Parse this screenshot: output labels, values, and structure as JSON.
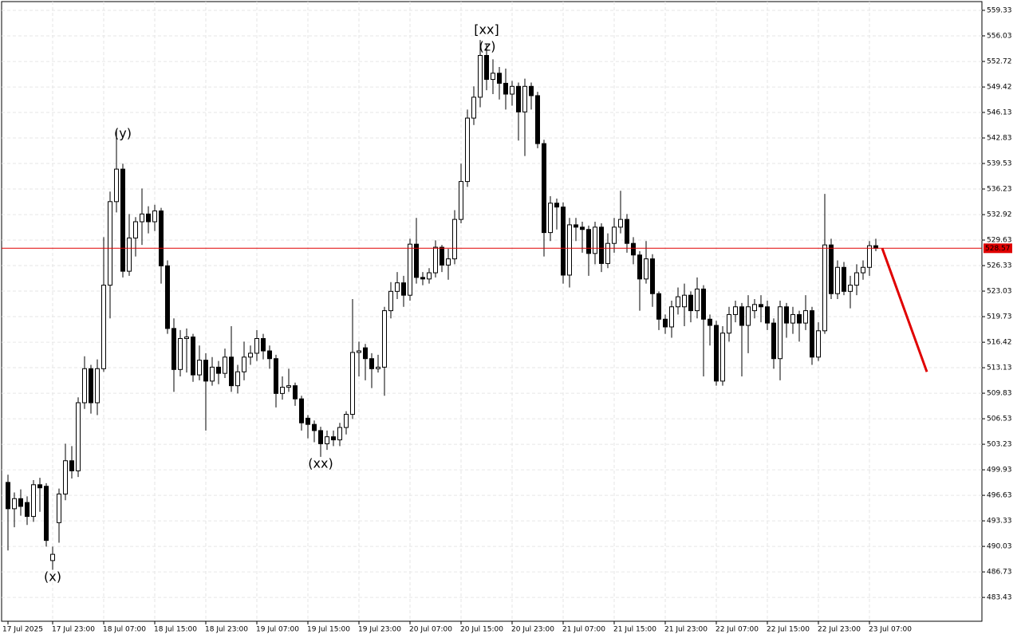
{
  "chart_data": {
    "type": "candlestick",
    "categories": [
      "17 Jul 2025",
      null,
      null,
      null,
      null,
      null,
      null,
      "17 Jul 23:00",
      null,
      null,
      null,
      null,
      null,
      null,
      null,
      "18 Jul 07:00",
      null,
      null,
      null,
      null,
      null,
      null,
      null,
      "18 Jul 15:00",
      null,
      null,
      null,
      null,
      null,
      null,
      null,
      "18 Jul 23:00",
      null,
      null,
      null,
      null,
      null,
      null,
      null,
      "19 Jul 07:00",
      null,
      null,
      null,
      null,
      null,
      null,
      null,
      "19 Jul 15:00",
      null,
      null,
      null,
      null,
      null,
      null,
      null,
      "19 Jul 23:00",
      null,
      null,
      null,
      null,
      null,
      null,
      null,
      "20 Jul 07:00",
      null,
      null,
      null,
      null,
      null,
      null,
      null,
      "20 Jul 15:00",
      null,
      null,
      null,
      null,
      null,
      null,
      null,
      "20 Jul 23:00",
      null,
      null,
      null,
      null,
      null,
      null,
      null,
      "21 Jul 07:00",
      null,
      null,
      null,
      null,
      null,
      null,
      null,
      "21 Jul 15:00",
      null,
      null,
      null,
      null,
      null,
      null,
      null,
      "21 Jul 23:00",
      null,
      null,
      null,
      null,
      null,
      null,
      null,
      "22 Jul 07:00",
      null,
      null,
      null,
      null,
      null,
      null,
      null,
      "22 Jul 15:00",
      null,
      null,
      null,
      null,
      null,
      null,
      null,
      "22 Jul 23:00",
      null,
      null,
      null,
      null,
      null,
      null,
      null,
      "23 Jul 07:00",
      null
    ],
    "open": [
      498.3,
      494.9,
      496.2,
      495.7,
      493.9,
      498.0,
      497.8,
      488.2,
      493.1,
      496.8,
      501.1,
      499.8,
      508.6,
      513.0,
      508.6,
      513.0,
      523.8,
      534.6,
      538.8,
      525.6,
      529.9,
      532.0,
      533.0,
      532.0,
      533.4,
      526.3,
      518.2,
      512.9,
      516.9,
      517.1,
      512.2,
      514.1,
      511.4,
      513.2,
      512.4,
      514.5,
      510.8,
      512.6,
      514.5,
      515.0,
      516.9,
      515.3,
      514.3,
      509.8,
      510.6,
      510.8,
      509.1,
      506.6,
      505.8,
      505.0,
      503.3,
      504.2,
      503.8,
      505.4,
      507.1,
      515.1,
      515.7,
      514.3,
      513.0,
      513.2,
      520.5,
      523.0,
      524.1,
      522.5,
      529.1,
      524.8,
      524.6,
      525.4,
      528.7,
      526.4,
      527.2,
      532.3,
      537.2,
      545.4,
      548.1,
      553.5,
      550.4,
      551.2,
      549.9,
      548.5,
      549.5,
      546.2,
      549.5,
      548.3,
      542.1,
      530.6,
      534.4,
      533.9,
      525.1,
      531.6,
      531.3,
      531.0,
      527.9,
      531.3,
      526.6,
      529.2,
      531.3,
      532.3,
      529.2,
      527.7,
      524.6,
      527.2,
      522.7,
      519.4,
      518.4,
      521.0,
      521.0,
      522.5,
      520.5,
      523.3,
      519.4,
      518.6,
      511.4,
      517.6,
      520.0,
      521.0,
      518.6,
      520.5,
      521.3,
      521.0,
      518.9,
      514.3,
      521.0,
      518.9,
      520.0,
      518.9,
      520.5,
      514.5,
      517.9,
      529.0,
      522.7,
      526.1,
      523.0,
      523.8,
      525.4,
      526.1,
      528.9
    ],
    "high": [
      499.3,
      497.0,
      497.4,
      496.5,
      498.6,
      498.9,
      498.2,
      490.0,
      497.5,
      503.3,
      503.0,
      509.3,
      514.6,
      513.5,
      514.2,
      530.0,
      535.9,
      543.9,
      539.5,
      533.0,
      532.6,
      536.3,
      534.0,
      534.2,
      533.8,
      527.0,
      519.5,
      518.0,
      518.2,
      517.5,
      516.0,
      515.0,
      514.5,
      514.0,
      515.6,
      518.5,
      513.5,
      516.5,
      516.0,
      518.0,
      517.5,
      516.0,
      514.8,
      512.0,
      513.0,
      511.2,
      509.5,
      507.0,
      506.3,
      505.5,
      505.0,
      505.0,
      506.0,
      507.5,
      522.0,
      516.5,
      516.2,
      515.0,
      514.8,
      521.0,
      524.2,
      525.5,
      525.0,
      529.8,
      532.5,
      525.5,
      526.0,
      529.6,
      529.0,
      528.5,
      533.5,
      539.5,
      546.5,
      549.5,
      555.5,
      555.0,
      553.0,
      552.0,
      551.8,
      550.2,
      550.0,
      550.5,
      550.0,
      548.8,
      542.6,
      535.3,
      535.0,
      534.5,
      532.5,
      532.5,
      532.0,
      531.5,
      532.0,
      531.8,
      530.5,
      532.5,
      536.0,
      533.0,
      530.0,
      528.2,
      529.5,
      527.8,
      523.0,
      520.0,
      521.8,
      523.5,
      524.0,
      523.0,
      524.8,
      523.8,
      520.0,
      519.2,
      518.5,
      521.0,
      521.8,
      521.5,
      522.5,
      522.0,
      522.5,
      521.8,
      519.5,
      521.8,
      521.5,
      521.0,
      520.5,
      522.5,
      521.0,
      519.0,
      535.6,
      529.8,
      527.0,
      526.8,
      525.0,
      526.5,
      527.0,
      529.5,
      529.8
    ],
    "low": [
      489.5,
      492.5,
      494.0,
      492.8,
      493.2,
      494.5,
      490.0,
      487.0,
      490.5,
      496.0,
      498.8,
      499.0,
      507.8,
      507.2,
      507.0,
      512.6,
      519.5,
      533.2,
      524.8,
      525.0,
      527.5,
      529.0,
      530.5,
      530.8,
      524.0,
      517.5,
      510.0,
      512.0,
      512.5,
      511.3,
      511.5,
      505.0,
      510.8,
      511.0,
      511.8,
      510.0,
      509.8,
      511.5,
      513.5,
      514.0,
      514.2,
      513.0,
      508.0,
      509.0,
      510.0,
      508.2,
      505.0,
      504.0,
      503.5,
      501.6,
      502.5,
      503.0,
      503.0,
      504.5,
      506.5,
      512.0,
      511.5,
      510.5,
      512.5,
      509.5,
      519.5,
      522.0,
      521.0,
      521.8,
      524.0,
      523.8,
      524.0,
      524.8,
      525.5,
      524.5,
      526.5,
      531.8,
      536.5,
      544.5,
      546.8,
      549.0,
      548.5,
      547.8,
      546.5,
      547.0,
      542.5,
      540.5,
      546.5,
      541.5,
      527.5,
      529.5,
      531.0,
      524.0,
      523.5,
      529.5,
      528.0,
      525.0,
      526.5,
      525.5,
      526.0,
      528.0,
      530.5,
      528.0,
      526.5,
      520.5,
      524.0,
      521.0,
      518.0,
      517.5,
      517.0,
      520.0,
      518.5,
      519.0,
      519.5,
      512.0,
      516.0,
      510.8,
      510.8,
      516.5,
      519.0,
      512.0,
      515.0,
      519.5,
      519.0,
      518.0,
      513.0,
      511.5,
      517.0,
      517.5,
      516.5,
      518.0,
      513.5,
      514.0,
      517.5,
      522.0,
      522.0,
      522.5,
      520.8,
      522.5,
      524.5,
      525.0,
      528.2
    ],
    "close": [
      494.9,
      496.2,
      495.2,
      493.9,
      498.0,
      497.6,
      490.8,
      489.0,
      496.8,
      501.1,
      499.8,
      508.6,
      513.0,
      508.6,
      513.0,
      523.8,
      534.6,
      538.8,
      525.6,
      529.9,
      532.0,
      533.0,
      532.0,
      533.4,
      526.3,
      518.2,
      512.9,
      516.9,
      517.1,
      512.2,
      514.1,
      511.4,
      513.2,
      512.4,
      514.5,
      510.8,
      512.6,
      514.5,
      515.0,
      516.9,
      515.3,
      514.3,
      509.8,
      510.6,
      510.8,
      509.1,
      506.0,
      505.8,
      505.0,
      503.3,
      504.2,
      503.8,
      505.4,
      507.1,
      515.1,
      515.3,
      514.3,
      513.0,
      513.2,
      520.5,
      523.0,
      524.1,
      522.5,
      529.1,
      524.8,
      524.6,
      525.4,
      528.7,
      526.4,
      527.2,
      532.3,
      537.2,
      545.4,
      548.1,
      553.5,
      550.4,
      551.2,
      549.9,
      548.5,
      549.5,
      546.2,
      549.5,
      548.3,
      542.1,
      530.6,
      534.4,
      533.9,
      525.1,
      531.6,
      531.3,
      531.0,
      527.9,
      531.3,
      526.6,
      529.2,
      531.3,
      532.3,
      529.2,
      527.7,
      524.6,
      527.2,
      522.7,
      519.4,
      518.4,
      521.0,
      522.3,
      522.5,
      520.5,
      523.3,
      519.4,
      518.6,
      511.4,
      517.6,
      520.0,
      521.0,
      518.6,
      521.0,
      521.3,
      521.0,
      518.9,
      514.3,
      521.0,
      518.9,
      520.0,
      518.9,
      520.5,
      514.5,
      517.9,
      529.0,
      522.7,
      526.1,
      523.0,
      523.8,
      525.4,
      526.1,
      528.9,
      528.57
    ],
    "up_color": "#ffffff",
    "down_color": "#000000",
    "ylim": [
      480.35,
      560.46
    ],
    "yticks": [
      559.33,
      556.03,
      552.72,
      549.42,
      546.13,
      542.83,
      539.53,
      536.23,
      532.92,
      529.63,
      526.33,
      523.03,
      519.73,
      516.42,
      513.13,
      509.83,
      506.53,
      503.23,
      499.93,
      496.63,
      493.33,
      490.03,
      486.73,
      483.43
    ],
    "grid": true,
    "current_price": 528.57,
    "current_price_color": "#e00000",
    "forecast": [
      528.57,
      512.6
    ],
    "forecast_color": "#e00000",
    "annotations": [
      {
        "text": "(x)",
        "color": "#2233dd"
      },
      {
        "text": "(y)",
        "color": "#2233dd"
      },
      {
        "text": "(xx)",
        "color": "#2233dd"
      },
      {
        "text": "(z)",
        "color": "#2233dd"
      },
      {
        "text": "[xx]",
        "color": "#33bb33"
      }
    ]
  }
}
